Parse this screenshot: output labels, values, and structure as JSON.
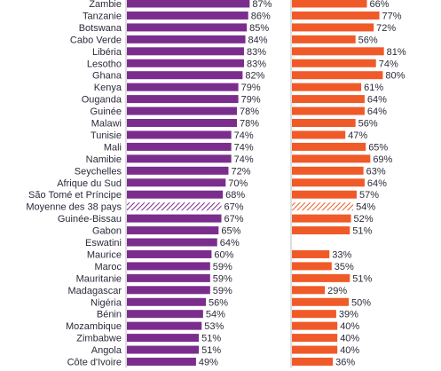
{
  "chart_data": [
    {
      "type": "bar",
      "orientation": "horizontal",
      "categories": [
        "Zambie",
        "Tanzanie",
        "Botswana",
        "Cabo Verde",
        "Libéria",
        "Lesotho",
        "Ghana",
        "Kenya",
        "Ouganda",
        "Guinée",
        "Malawi",
        "Tunisie",
        "Mali",
        "Namibie",
        "Seychelles",
        "Afrique du Sud",
        "São Tomé et Príncipe",
        "Moyenne des 38 pays",
        "Guinée-Bissau",
        "Gabon",
        "Eswatini",
        "Maurice",
        "Maroc",
        "Mauritanie",
        "Madagascar",
        "Nigéria",
        "Bénin",
        "Mozambique",
        "Zimbabwe",
        "Angola",
        "Côte d'Ivoire"
      ],
      "values": [
        87,
        86,
        85,
        84,
        83,
        83,
        82,
        79,
        79,
        78,
        78,
        74,
        74,
        74,
        72,
        70,
        68,
        67,
        67,
        65,
        64,
        60,
        59,
        59,
        59,
        56,
        54,
        53,
        51,
        51,
        49
      ],
      "value_labels": [
        "87%",
        "86%",
        "85%",
        "84%",
        "83%",
        "83%",
        "82%",
        "79%",
        "79%",
        "78%",
        "78%",
        "74%",
        "74%",
        "74%",
        "72%",
        "70%",
        "68%",
        "67%",
        "67%",
        "65%",
        "64%",
        "60%",
        "59%",
        "59%",
        "59%",
        "56%",
        "54%",
        "53%",
        "51%",
        "51%",
        "49%"
      ],
      "highlight_category": "Moyenne des 38 pays",
      "color": "#7b2d8e",
      "highlight_style": "hatched",
      "xlim": [
        0,
        100
      ]
    },
    {
      "type": "bar",
      "orientation": "horizontal",
      "categories": [
        "Zambie",
        "Tanzanie",
        "Botswana",
        "Cabo Verde",
        "Libéria",
        "Lesotho",
        "Ghana",
        "Kenya",
        "Ouganda",
        "Guinée",
        "Malawi",
        "Tunisie",
        "Mali",
        "Namibie",
        "Seychelles",
        "Afrique du Sud",
        "São Tomé et Príncipe",
        "Moyenne des 38 pays",
        "Guinée-Bissau",
        "Gabon",
        "Eswatini",
        "Maurice",
        "Maroc",
        "Mauritanie",
        "Madagascar",
        "Nigéria",
        "Bénin",
        "Mozambique",
        "Zimbabwe",
        "Angola",
        "Côte d'Ivoire"
      ],
      "values": [
        66,
        77,
        72,
        56,
        81,
        74,
        80,
        61,
        64,
        64,
        56,
        47,
        65,
        69,
        63,
        64,
        57,
        54,
        52,
        51,
        null,
        33,
        35,
        51,
        29,
        50,
        39,
        40,
        40,
        40,
        36
      ],
      "value_labels": [
        "66%",
        "77%",
        "72%",
        "56%",
        "81%",
        "74%",
        "80%",
        "61%",
        "64%",
        "64%",
        "56%",
        "47%",
        "65%",
        "69%",
        "63%",
        "64%",
        "57%",
        "54%",
        "52%",
        "51%",
        "",
        "33%",
        "35%",
        "51%",
        "29%",
        "50%",
        "39%",
        "40%",
        "40%",
        "40%",
        "36%"
      ],
      "highlight_category": "Moyenne des 38 pays",
      "color": "#f05a28",
      "highlight_style": "hatched",
      "xlim": [
        0,
        100
      ]
    }
  ]
}
